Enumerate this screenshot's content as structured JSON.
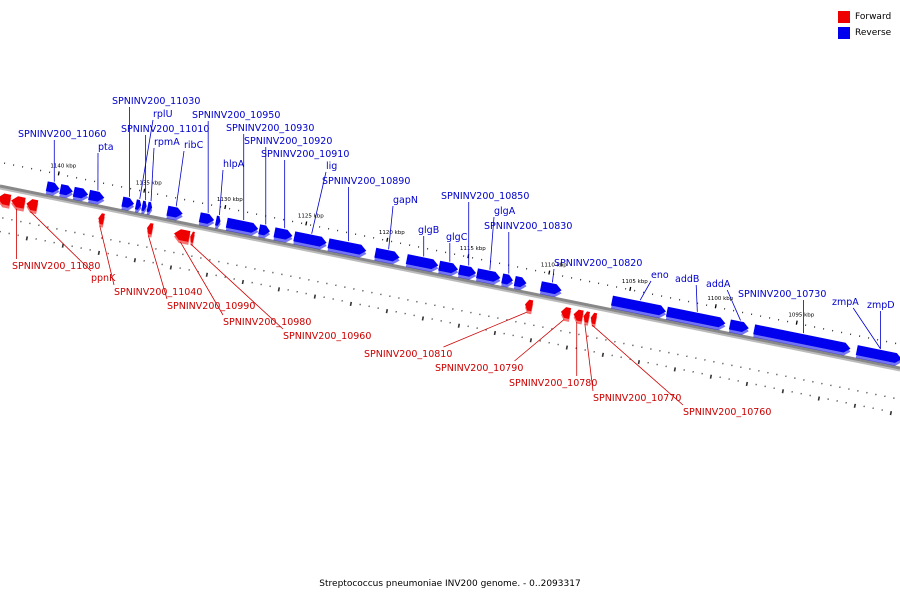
{
  "legend": {
    "forward_label": "Forward",
    "forward_color": "#ee0000",
    "reverse_label": "Reverse",
    "reverse_color": "#0000ee"
  },
  "caption": "Streptococcus pneumoniae INV200 genome. - 0..2093317",
  "colors": {
    "forward": "#ee0000",
    "reverse": "#0000ee",
    "backbone": "#888888"
  },
  "ruler": {
    "ticks": [
      {
        "label": "1140 kbp",
        "t": 0.06
      },
      {
        "label": "1135 kbp",
        "t": 0.155
      },
      {
        "label": "1130 kbp",
        "t": 0.245
      },
      {
        "label": "1125 kbp",
        "t": 0.335
      },
      {
        "label": "1120 kbp",
        "t": 0.425
      },
      {
        "label": "1115 kbp",
        "t": 0.515
      },
      {
        "label": "1110 kbp",
        "t": 0.605
      },
      {
        "label": "1105 kbp",
        "t": 0.695
      },
      {
        "label": "1100 kbp",
        "t": 0.79
      },
      {
        "label": "1095 kbp",
        "t": 0.88
      }
    ]
  },
  "features": {
    "reverse": [
      {
        "t0": 0.05,
        "t1": 0.064,
        "label": "SPNINV200_11060",
        "side": "top"
      },
      {
        "t0": 0.065,
        "t1": 0.079,
        "label": "",
        "side": "top"
      },
      {
        "t0": 0.08,
        "t1": 0.096,
        "label": "",
        "side": "top"
      },
      {
        "t0": 0.097,
        "t1": 0.114,
        "label": "pta",
        "side": "top"
      },
      {
        "t0": 0.134,
        "t1": 0.147,
        "label": "SPNINV200_11030",
        "side": "top"
      },
      {
        "t0": 0.149,
        "t1": 0.155,
        "label": "rplU",
        "side": "top"
      },
      {
        "t0": 0.156,
        "t1": 0.161,
        "label": "SPNINV200_11010",
        "side": "top"
      },
      {
        "t0": 0.162,
        "t1": 0.167,
        "label": "rpmA",
        "side": "top"
      },
      {
        "t0": 0.184,
        "t1": 0.201,
        "label": "ribC",
        "side": "top"
      },
      {
        "t0": 0.22,
        "t1": 0.236,
        "label": "SPNINV200_10950",
        "side": "top"
      },
      {
        "t0": 0.238,
        "t1": 0.243,
        "label": "hlpA",
        "side": "top"
      },
      {
        "t0": 0.25,
        "t1": 0.285,
        "label": "SPNINV200_10930",
        "side": "top"
      },
      {
        "t0": 0.286,
        "t1": 0.298,
        "label": "SPNINV200_10920",
        "side": "top"
      },
      {
        "t0": 0.303,
        "t1": 0.323,
        "label": "SPNINV200_10910",
        "side": "top"
      },
      {
        "t0": 0.325,
        "t1": 0.361,
        "label": "lig",
        "side": "top"
      },
      {
        "t0": 0.363,
        "t1": 0.405,
        "label": "SPNINV200_10890",
        "side": "top"
      },
      {
        "t0": 0.415,
        "t1": 0.442,
        "label": "gapN",
        "side": "top"
      },
      {
        "t0": 0.45,
        "t1": 0.485,
        "label": "glgB",
        "side": "top"
      },
      {
        "t0": 0.486,
        "t1": 0.507,
        "label": "glgC",
        "side": "top"
      },
      {
        "t0": 0.508,
        "t1": 0.527,
        "label": "SPNINV200_10850",
        "side": "top"
      },
      {
        "t0": 0.528,
        "t1": 0.554,
        "label": "glgA",
        "side": "top"
      },
      {
        "t0": 0.556,
        "t1": 0.568,
        "label": "SPNINV200_10830",
        "side": "top"
      },
      {
        "t0": 0.57,
        "t1": 0.583,
        "label": "",
        "side": "top"
      },
      {
        "t0": 0.599,
        "t1": 0.622,
        "label": "SPNINV200_10820",
        "side": "top"
      },
      {
        "t0": 0.678,
        "t1": 0.738,
        "label": "eno",
        "side": "top"
      },
      {
        "t0": 0.739,
        "t1": 0.804,
        "label": "addB",
        "side": "top"
      },
      {
        "t0": 0.809,
        "t1": 0.83,
        "label": "addA",
        "side": "top"
      },
      {
        "t0": 0.836,
        "t1": 0.943,
        "label": "SPNINV200_10730",
        "side": "top"
      },
      {
        "t0": 0.95,
        "t1": 1.0,
        "label": "zmpA",
        "side": "top"
      }
    ],
    "forward": [
      {
        "t0": 0.0,
        "t1": 0.014,
        "label": "",
        "side": "bottom"
      },
      {
        "t0": 0.015,
        "t1": 0.03,
        "label": "SPNINV200_11080",
        "side": "bottom"
      },
      {
        "t0": 0.032,
        "t1": 0.044,
        "label": "ppnK",
        "side": "bottom"
      },
      {
        "t0": 0.112,
        "t1": 0.118,
        "label": "SPNINV200_11040",
        "side": "bottom"
      },
      {
        "t0": 0.166,
        "t1": 0.172,
        "label": "SPNINV200_10990",
        "side": "bottom"
      },
      {
        "t0": 0.196,
        "t1": 0.213,
        "label": "SPNINV200_10980",
        "side": "bottom"
      },
      {
        "t0": 0.214,
        "t1": 0.218,
        "label": "SPNINV200_10960",
        "side": "bottom"
      },
      {
        "t0": 0.586,
        "t1": 0.594,
        "label": "SPNINV200_10810",
        "side": "bottom"
      },
      {
        "t0": 0.626,
        "t1": 0.636,
        "label": "SPNINV200_10790",
        "side": "bottom"
      },
      {
        "t0": 0.64,
        "t1": 0.65,
        "label": "SPNINV200_10780",
        "side": "bottom"
      },
      {
        "t0": 0.651,
        "t1": 0.657,
        "label": "SPNINV200_10770",
        "side": "bottom"
      },
      {
        "t0": 0.659,
        "t1": 0.665,
        "label": "SPNINV200_10760",
        "side": "bottom"
      }
    ]
  },
  "labels": {
    "top": [
      {
        "text": "SPNINV200_11030",
        "t": 0.141
      },
      {
        "text": "rplU",
        "t": 0.152
      },
      {
        "text": "SPNINV200_11010",
        "t": 0.158
      },
      {
        "text": "rpmA",
        "t": 0.164
      },
      {
        "text": "SPNINV200_11060",
        "t": 0.057
      },
      {
        "text": "pta",
        "t": 0.105
      },
      {
        "text": "ribC",
        "t": 0.192
      },
      {
        "text": "SPNINV200_10950",
        "t": 0.228
      },
      {
        "text": "SPNINV200_10930",
        "t": 0.268
      },
      {
        "text": "SPNINV200_10920",
        "t": 0.292
      },
      {
        "text": "hlpA",
        "t": 0.24
      },
      {
        "text": "SPNINV200_10910",
        "t": 0.313
      },
      {
        "text": "lig",
        "t": 0.343
      },
      {
        "text": "SPNINV200_10890",
        "t": 0.384
      },
      {
        "text": "gapN",
        "t": 0.428
      },
      {
        "text": "glgB",
        "t": 0.467
      },
      {
        "text": "glgC",
        "t": 0.496
      },
      {
        "text": "SPNINV200_10850",
        "t": 0.517
      },
      {
        "text": "glgA",
        "t": 0.541
      },
      {
        "text": "SPNINV200_10830",
        "t": 0.562
      },
      {
        "text": "SPNINV200_10820",
        "t": 0.61
      },
      {
        "text": "eno",
        "t": 0.64
      },
      {
        "text": "addB",
        "t": 0.708
      },
      {
        "text": "addA",
        "t": 0.772
      },
      {
        "text": "SPNINV200_10730",
        "t": 0.82
      },
      {
        "text": "zmpA",
        "t": 0.895
      },
      {
        "text": "zmpD",
        "t": 0.975
      }
    ],
    "bottom": [
      {
        "text": "SPNINV200_11080",
        "t": 0.022
      },
      {
        "text": "ppnK",
        "t": 0.038
      },
      {
        "text": "SPNINV200_11040",
        "t": 0.115
      },
      {
        "text": "SPNINV200_10990",
        "t": 0.169
      },
      {
        "text": "SPNINV200_10980",
        "t": 0.205
      },
      {
        "text": "SPNINV200_10960",
        "t": 0.216
      },
      {
        "text": "SPNINV200_10810",
        "t": 0.59
      },
      {
        "text": "SPNINV200_10790",
        "t": 0.631
      },
      {
        "text": "SPNINV200_10780",
        "t": 0.645
      },
      {
        "text": "SPNINV200_10770",
        "t": 0.654
      },
      {
        "text": "SPNINV200_10760",
        "t": 0.662
      }
    ]
  }
}
